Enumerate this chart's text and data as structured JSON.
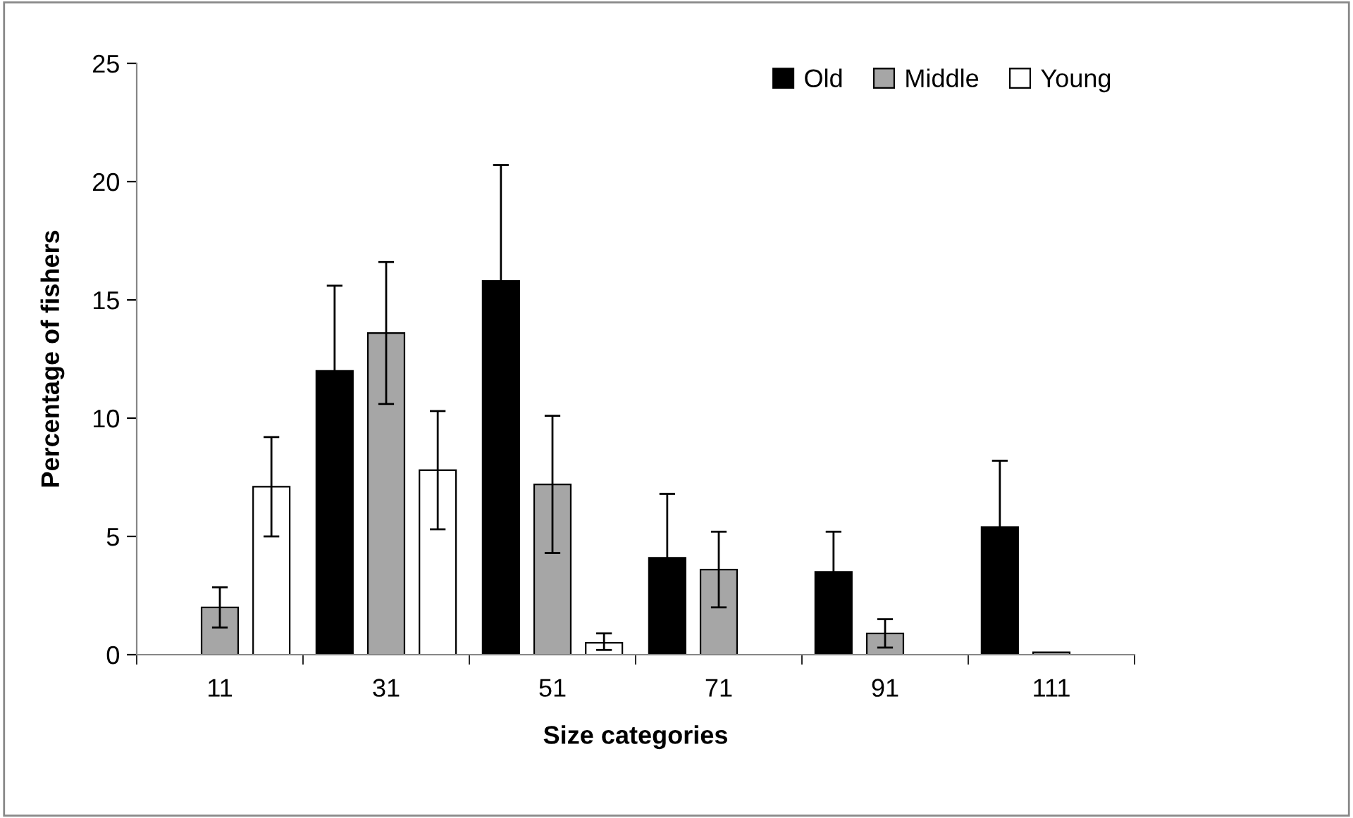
{
  "chart_data": {
    "type": "bar",
    "xlabel": "Size categories",
    "ylabel": "Percentage of fishers",
    "categories": [
      "11",
      "31",
      "51",
      "71",
      "91",
      "111"
    ],
    "series": [
      {
        "name": "Old",
        "color": "#000000",
        "values": [
          null,
          12.0,
          15.8,
          4.1,
          3.5,
          5.4
        ],
        "errors": [
          null,
          3.6,
          4.9,
          2.7,
          1.7,
          2.8
        ]
      },
      {
        "name": "Middle",
        "color": "#a6a6a6",
        "values": [
          2.0,
          13.6,
          7.2,
          3.6,
          0.9,
          0.1
        ],
        "errors": [
          0.85,
          3.0,
          2.9,
          1.6,
          0.6,
          null
        ]
      },
      {
        "name": "Young",
        "color": "#ffffff",
        "values": [
          7.1,
          7.8,
          0.5,
          null,
          null,
          null
        ],
        "errors": [
          2.1,
          2.5,
          [
            0.2,
            0.9
          ],
          null,
          null,
          null
        ]
      }
    ],
    "ylim": [
      0,
      25
    ],
    "yticks": [
      0,
      5,
      10,
      15,
      20,
      25
    ],
    "grid": false,
    "legend": "top right"
  }
}
